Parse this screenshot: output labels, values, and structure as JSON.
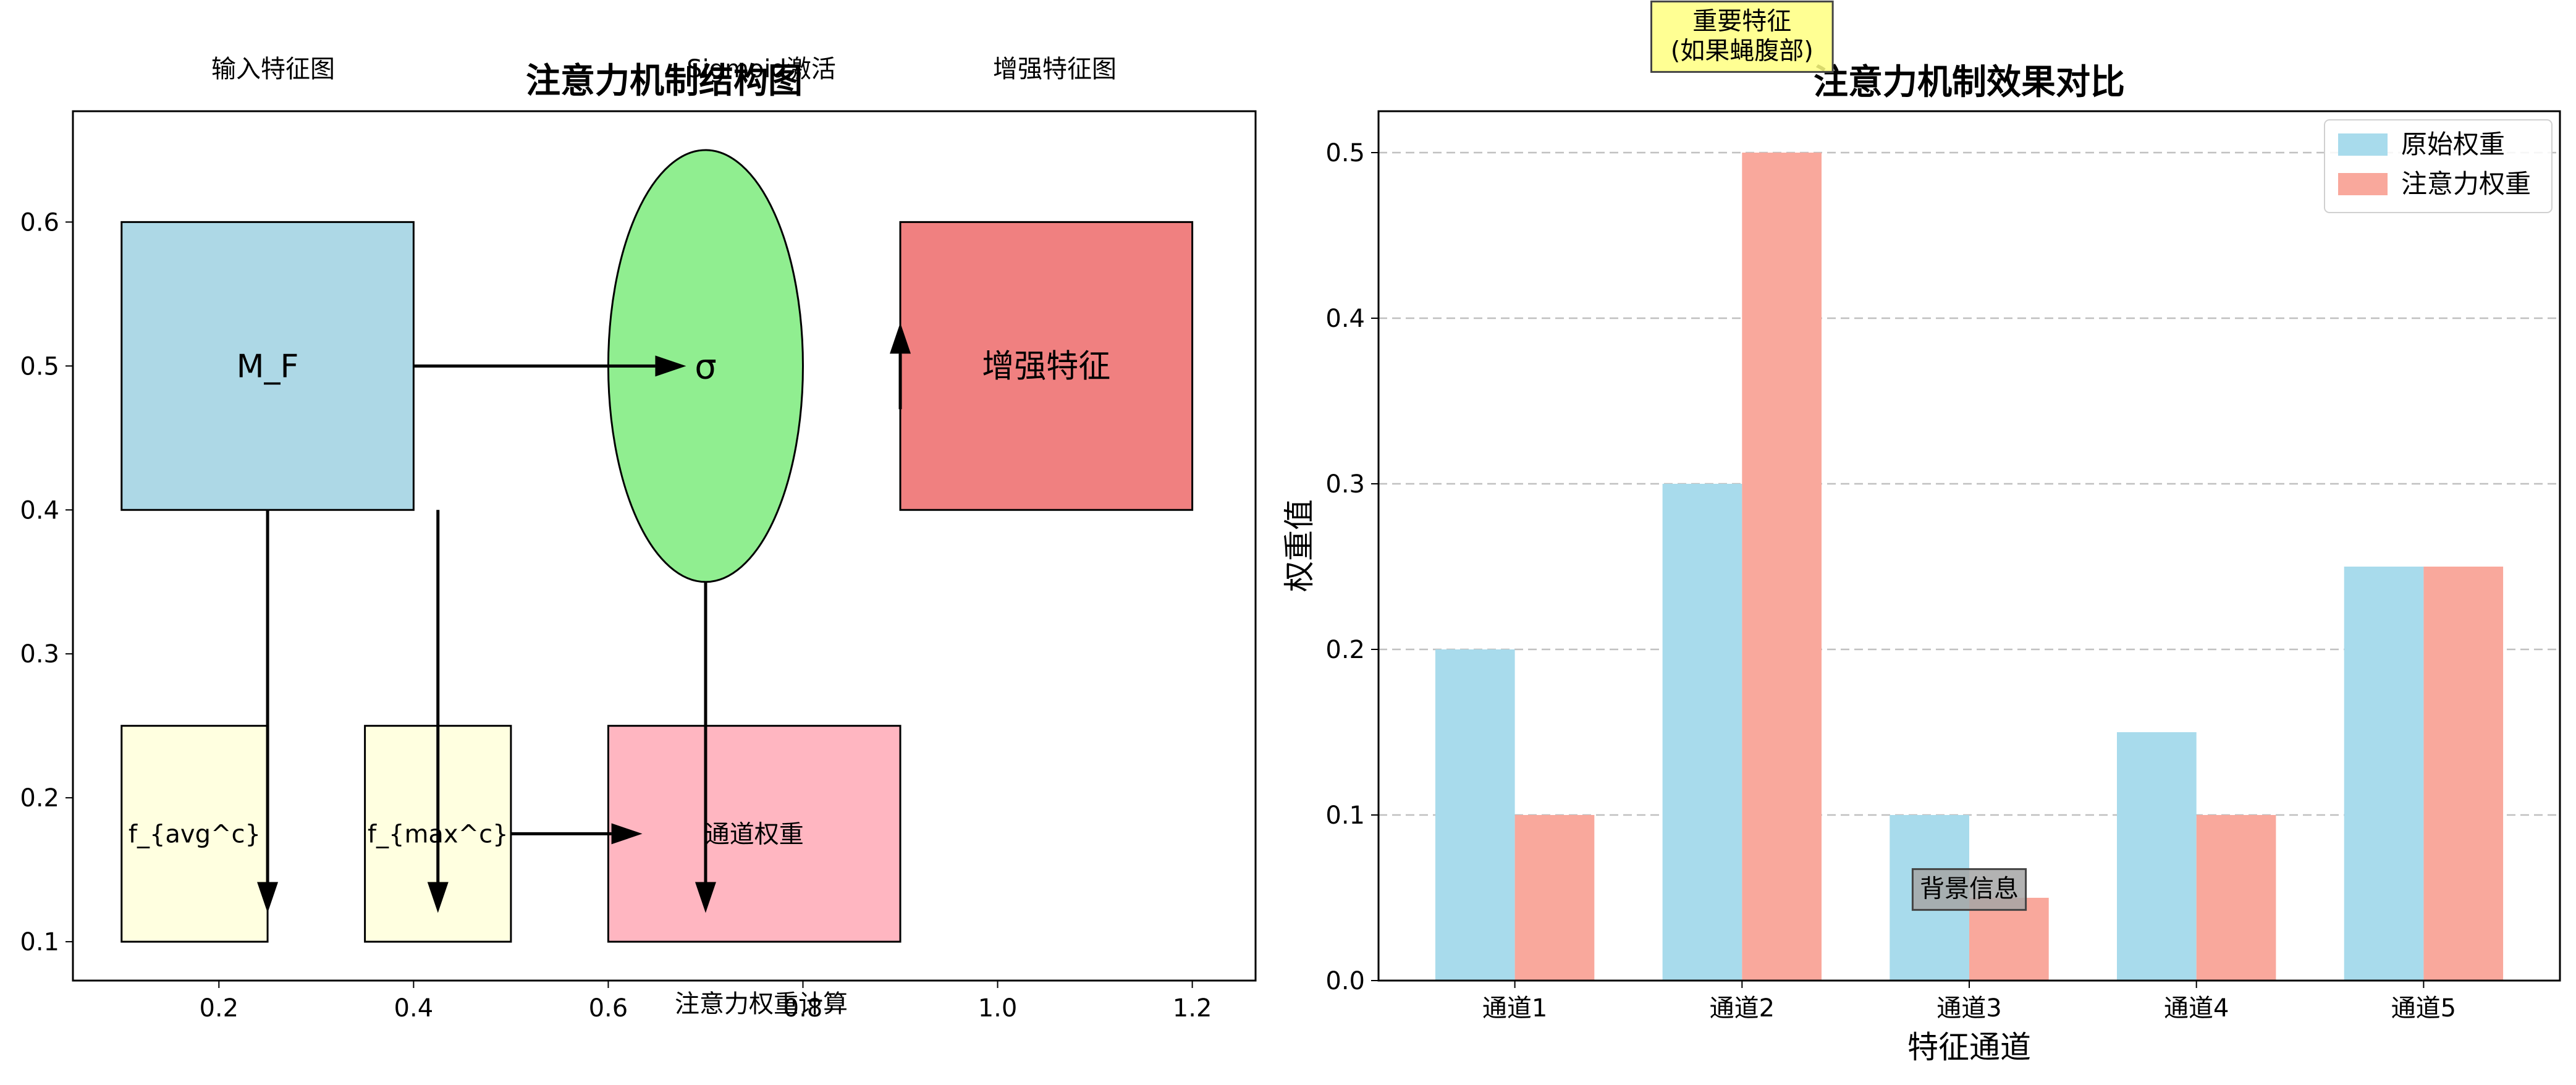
{
  "chart_data": [
    {
      "type": "diagram",
      "title": "注意力机制结构图",
      "xlim": [
        0.05,
        1.265
      ],
      "ylim": [
        0.073,
        0.677
      ],
      "xticks": [
        0.2,
        0.4,
        0.6,
        0.8,
        1.0,
        1.2
      ],
      "yticks": [
        0.1,
        0.2,
        0.3,
        0.4,
        0.5,
        0.6
      ],
      "top_labels": [
        "输入特征图",
        "Sigmoid激活",
        "增强特征图"
      ],
      "bottom_label": "注意力权重计算",
      "nodes": [
        {
          "id": "mf",
          "shape": "rect",
          "label": "M_F",
          "x": 0.1,
          "y": 0.4,
          "w": 0.3,
          "h": 0.2,
          "color": "#add8e6"
        },
        {
          "id": "sigma",
          "shape": "ellipse",
          "label": "σ",
          "cx": 0.7,
          "cy": 0.5,
          "rx": 0.1,
          "ry": 0.15,
          "color": "#90ee90"
        },
        {
          "id": "enh",
          "shape": "rect",
          "label": "增强特征",
          "x": 0.9,
          "y": 0.4,
          "w": 0.3,
          "h": 0.2,
          "color": "#f08080"
        },
        {
          "id": "favg",
          "shape": "rect",
          "label": "f_{avg^c}",
          "x": 0.1,
          "y": 0.1,
          "w": 0.15,
          "h": 0.15,
          "color": "#ffffe0"
        },
        {
          "id": "fmax",
          "shape": "rect",
          "label": "f_{max^c}",
          "x": 0.35,
          "y": 0.1,
          "w": 0.15,
          "h": 0.15,
          "color": "#ffffe0"
        },
        {
          "id": "cw",
          "shape": "rect",
          "label": "通道权重",
          "x": 0.6,
          "y": 0.1,
          "w": 0.3,
          "h": 0.15,
          "color": "#ffb6c1"
        }
      ],
      "arrows": [
        {
          "from": [
            0.4,
            0.5
          ],
          "to": [
            0.68,
            0.5
          ]
        },
        {
          "from": [
            0.25,
            0.4
          ],
          "to": [
            0.25,
            0.12
          ]
        },
        {
          "from": [
            0.425,
            0.4
          ],
          "to": [
            0.425,
            0.12
          ]
        },
        {
          "from": [
            0.5,
            0.175
          ],
          "to": [
            0.635,
            0.175
          ]
        },
        {
          "from": [
            0.7,
            0.35
          ],
          "to": [
            0.7,
            0.12
          ]
        },
        {
          "from": [
            0.9,
            0.47
          ],
          "to": [
            0.9,
            0.53
          ]
        }
      ]
    },
    {
      "type": "bar",
      "title": "注意力机制效果对比",
      "xlabel": "特征通道",
      "ylabel": "权重值",
      "categories": [
        "通道1",
        "通道2",
        "通道3",
        "通道4",
        "通道5"
      ],
      "series": [
        {
          "name": "原始权重",
          "values": [
            0.2,
            0.3,
            0.1,
            0.15,
            0.25
          ],
          "color": "#a8dbec"
        },
        {
          "name": "注意力权重",
          "values": [
            0.1,
            0.5,
            0.05,
            0.1,
            0.25
          ],
          "color": "#f9a89c"
        }
      ],
      "ylim": [
        0,
        0.525
      ],
      "yticks": [
        0.0,
        0.1,
        0.2,
        0.3,
        0.4,
        0.5
      ],
      "grid": "y-dashed",
      "legend": "top-right",
      "annotations": [
        {
          "text": "重要特征\n(如果蝇腹部)",
          "x": 1,
          "y": 0.57,
          "color": "#ffff80"
        },
        {
          "text": "背景信息",
          "x": 2,
          "y": 0.055,
          "color": "#a6a6a6"
        }
      ]
    }
  ]
}
